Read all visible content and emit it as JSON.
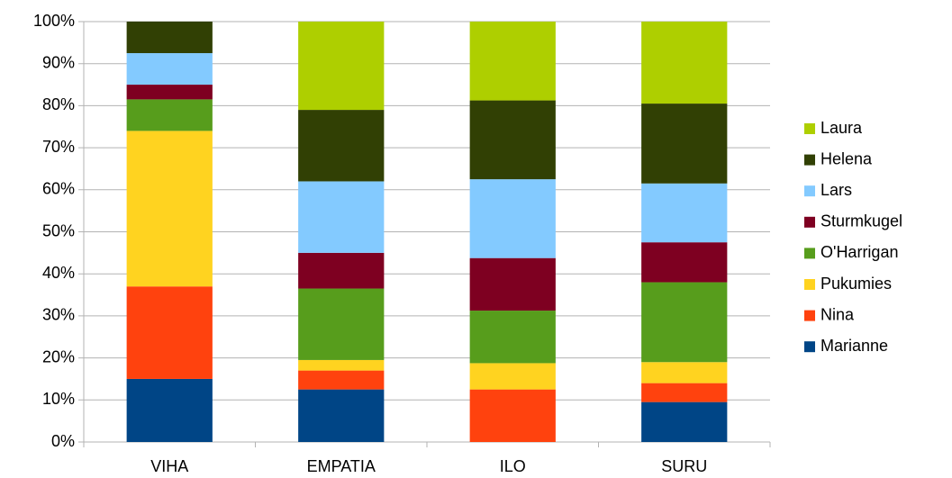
{
  "chart_data": {
    "type": "bar",
    "stacked": true,
    "categories": [
      "VIHA",
      "EMPATIA",
      "ILO",
      "SURU"
    ],
    "series": [
      {
        "name": "Marianne",
        "color": "#004586",
        "values": [
          15,
          12.5,
          0,
          9.5
        ]
      },
      {
        "name": "Nina",
        "color": "#ff420e",
        "values": [
          22,
          4.5,
          12.5,
          4.5
        ]
      },
      {
        "name": "Pukumies",
        "color": "#ffd320",
        "values": [
          37,
          2.5,
          6.25,
          5
        ]
      },
      {
        "name": "O'Harrigan",
        "color": "#579d1c",
        "values": [
          7.5,
          17,
          12.5,
          19
        ]
      },
      {
        "name": "Sturmkugel",
        "color": "#7e0021",
        "values": [
          3.5,
          8.5,
          12.5,
          9.5
        ]
      },
      {
        "name": "Lars",
        "color": "#83caff",
        "values": [
          7.5,
          17,
          18.75,
          14
        ]
      },
      {
        "name": "Helena",
        "color": "#314004",
        "values": [
          7.5,
          17,
          18.75,
          19
        ]
      },
      {
        "name": "Laura",
        "color": "#aecf00",
        "values": [
          0,
          21,
          18.75,
          19.5
        ]
      }
    ],
    "ylim": [
      0,
      100
    ],
    "yticks": [
      {
        "value": 0,
        "label": "0%"
      },
      {
        "value": 10,
        "label": "10%"
      },
      {
        "value": 20,
        "label": "20%"
      },
      {
        "value": 30,
        "label": "30%"
      },
      {
        "value": 40,
        "label": "40%"
      },
      {
        "value": 50,
        "label": "50%"
      },
      {
        "value": 60,
        "label": "60%"
      },
      {
        "value": 70,
        "label": "70%"
      },
      {
        "value": 80,
        "label": "80%"
      },
      {
        "value": 90,
        "label": "90%"
      },
      {
        "value": 100,
        "label": "100%"
      }
    ],
    "grid": true,
    "legend": "right"
  }
}
